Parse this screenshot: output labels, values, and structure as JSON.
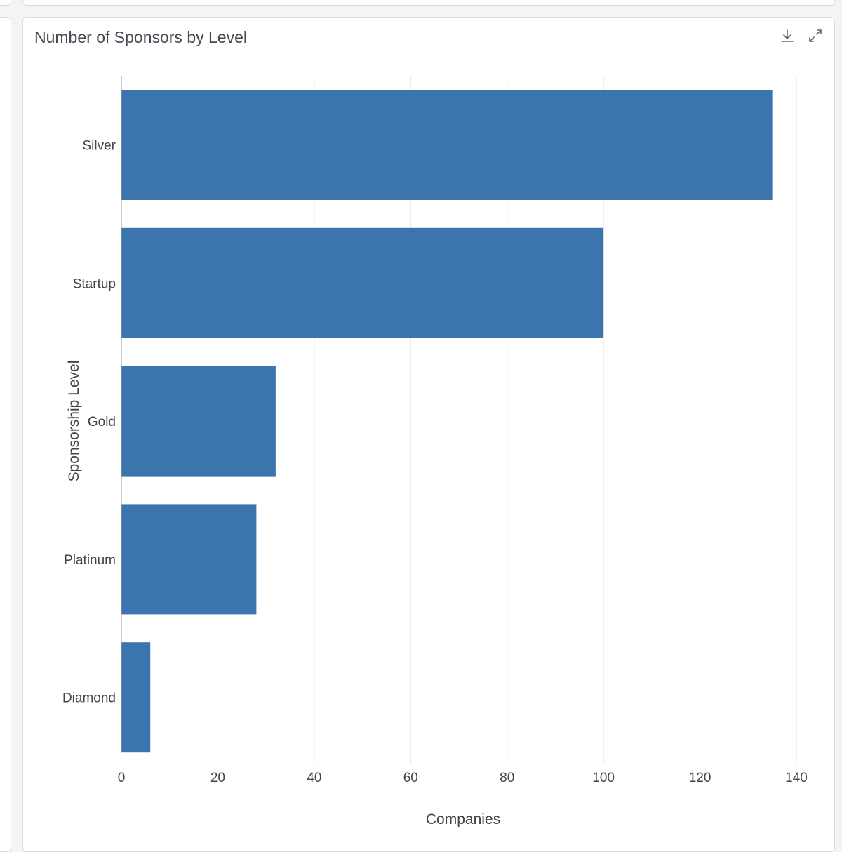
{
  "panel": {
    "title": "Number of Sponsors by Level",
    "icons": [
      "download-icon",
      "expand-icon"
    ]
  },
  "colors": {
    "bar": "#3c75ae",
    "grid": "#e6e6e6",
    "axis": "#999999",
    "text": "#444444"
  },
  "chart_data": {
    "type": "bar",
    "orientation": "horizontal",
    "title": "",
    "xlabel": "Companies",
    "ylabel": "Sponsorship Level",
    "categories": [
      "Silver",
      "Startup",
      "Gold",
      "Platinum",
      "Diamond"
    ],
    "values": [
      135,
      100,
      32,
      28,
      6
    ],
    "xlim": [
      0,
      140
    ],
    "xticks": [
      0,
      20,
      40,
      60,
      80,
      100,
      120,
      140
    ],
    "grid": true
  }
}
